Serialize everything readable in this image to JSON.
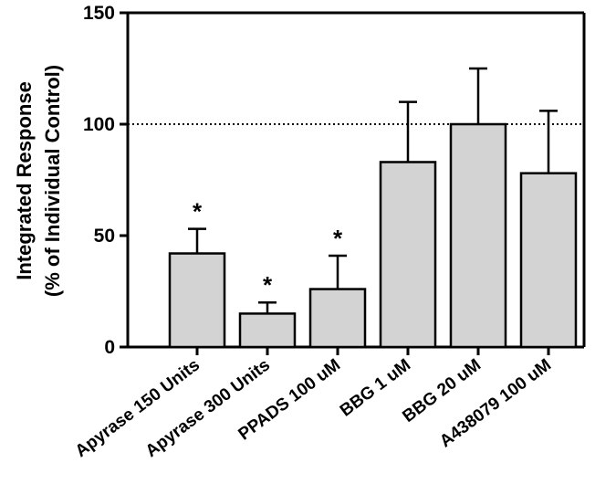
{
  "chart_data": {
    "type": "bar",
    "categories": [
      "Apyrase 150 Units",
      "Apyrase 300 Units",
      "PPADS 100 uM",
      "BBG 1 uM",
      "BBG 20 uM",
      "A438079 100 uM"
    ],
    "values": [
      42,
      15,
      26,
      83,
      100,
      78
    ],
    "error_upper": [
      53,
      20,
      41,
      110,
      125,
      106
    ],
    "annotations": [
      "*",
      "*",
      "*",
      "",
      "",
      ""
    ],
    "title": "",
    "xlabel": "",
    "ylabel_lines": [
      "Integrated Response",
      "(% of Individual Control)"
    ],
    "ylim": [
      0,
      150
    ],
    "yticks": [
      0,
      50,
      100,
      150
    ],
    "reference_line": 100,
    "grid": false,
    "bar_color": "#d3d3d3",
    "edge_color": "#000000"
  }
}
